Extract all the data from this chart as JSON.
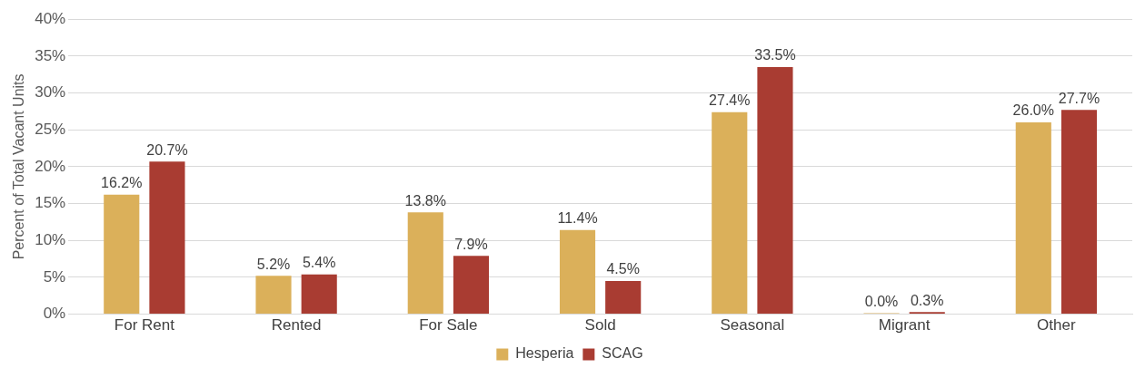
{
  "chart_data": {
    "type": "bar",
    "ylabel": "Percent of Total Vacant Units",
    "categories": [
      "For Rent",
      "Rented",
      "For Sale",
      "Sold",
      "Seasonal",
      "Migrant",
      "Other"
    ],
    "series": [
      {
        "name": "Hesperia",
        "color": "#dbb05a",
        "values": [
          16.2,
          5.2,
          13.8,
          11.4,
          27.4,
          0.0,
          26.0
        ],
        "value_labels": [
          "16.2%",
          "5.2%",
          "13.8%",
          "11.4%",
          "27.4%",
          "0.0%",
          "26.0%"
        ]
      },
      {
        "name": "SCAG",
        "color": "#a93c32",
        "values": [
          20.7,
          5.4,
          7.9,
          4.5,
          33.5,
          0.3,
          27.7
        ],
        "value_labels": [
          "20.7%",
          "5.4%",
          "7.9%",
          "4.5%",
          "33.5%",
          "0.3%",
          "27.7%"
        ]
      }
    ],
    "ylim": [
      0,
      40
    ],
    "yticks": [
      {
        "value": 0,
        "label": "0%"
      },
      {
        "value": 5,
        "label": "5%"
      },
      {
        "value": 10,
        "label": "10%"
      },
      {
        "value": 15,
        "label": "15%"
      },
      {
        "value": 20,
        "label": "20%"
      },
      {
        "value": 25,
        "label": "25%"
      },
      {
        "value": 30,
        "label": "30%"
      },
      {
        "value": 35,
        "label": "35%"
      },
      {
        "value": 40,
        "label": "40%"
      }
    ],
    "grid": "y",
    "legend": "bottom"
  }
}
